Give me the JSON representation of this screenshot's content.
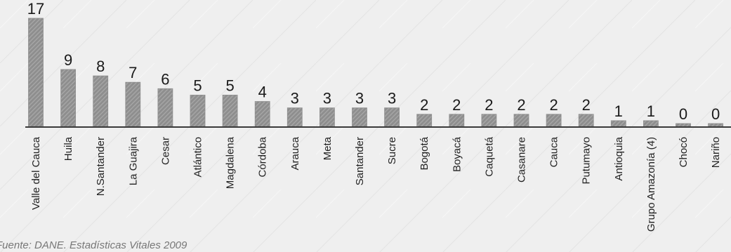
{
  "chart_data": {
    "type": "bar",
    "categories": [
      "Valle del Cauca",
      "Huila",
      "N.Santander",
      "La Guajira",
      "Cesar",
      "Atlántico",
      "Magdalena",
      "Córdoba",
      "Arauca",
      "Meta",
      "Santander",
      "Sucre",
      "Bogotá",
      "Boyacá",
      "Caquetá",
      "Casanare",
      "Cauca",
      "Putumayo",
      "Antioquia",
      "Grupo Amazonía (4)",
      "Chocó",
      "Nariño"
    ],
    "values": [
      17,
      9,
      8,
      7,
      6,
      5,
      5,
      4,
      3,
      3,
      3,
      3,
      2,
      2,
      2,
      2,
      2,
      2,
      1,
      1,
      0,
      0
    ],
    "title": "",
    "xlabel": "",
    "ylabel": "",
    "ylim": [
      0,
      17
    ],
    "grid": false,
    "data_labels": true,
    "bar_color": "#8f8f8f",
    "axis_color": "#3a3a3a"
  },
  "source": "Fuente: DANE. Estadísticas Vitales 2009"
}
